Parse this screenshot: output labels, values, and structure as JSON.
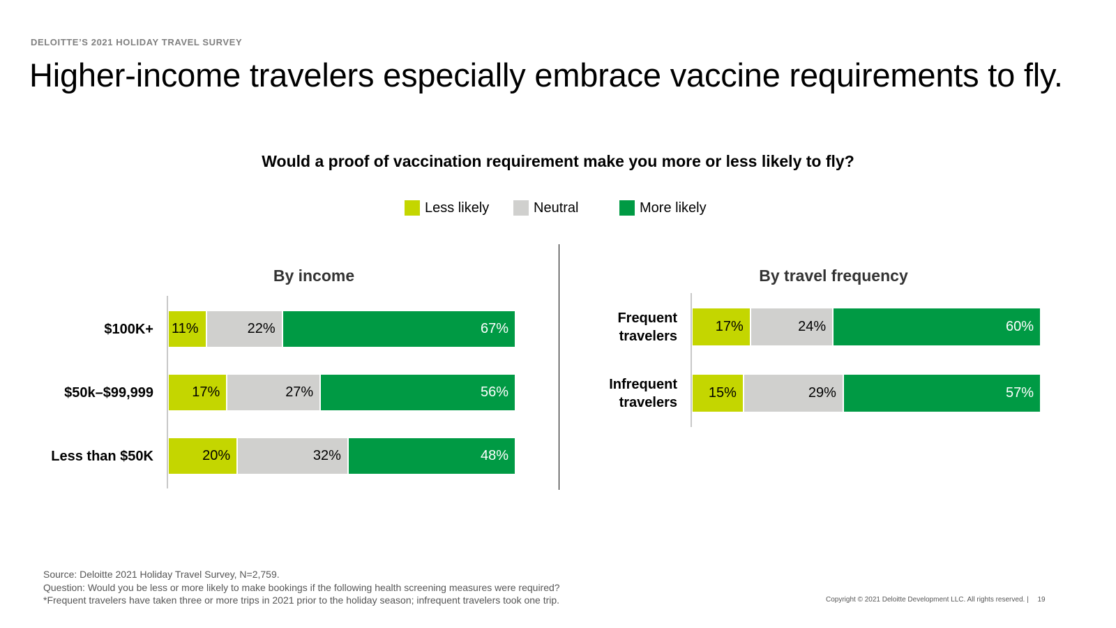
{
  "header": {
    "eyebrow": "DELOITTE’S 2021 HOLIDAY TRAVEL SURVEY",
    "title": "Higher-income travelers especially embrace vaccine requirements to fly."
  },
  "chart_question": "Would a proof of vaccination requirement make you more or less likely to fly?",
  "legend": [
    {
      "label": "Less likely",
      "color": "#c4d600"
    },
    {
      "label": "Neutral",
      "color": "#d0d0ce"
    },
    {
      "label": "More likely",
      "color": "#009a44"
    }
  ],
  "chart_data": [
    {
      "type": "bar",
      "orientation": "horizontal",
      "stacked": true,
      "title": "By income",
      "categories": [
        "$100K+",
        "$50k–$99,999",
        "Less than $50K"
      ],
      "series": [
        {
          "name": "Less likely",
          "values": [
            11,
            17,
            20
          ],
          "labels": [
            "11%",
            "17%",
            "20%"
          ]
        },
        {
          "name": "Neutral",
          "values": [
            22,
            27,
            32
          ],
          "labels": [
            "22%",
            "27%",
            "32%"
          ]
        },
        {
          "name": "More likely",
          "values": [
            67,
            56,
            48
          ],
          "labels": [
            "67%",
            "56%",
            "48%"
          ]
        }
      ],
      "xlim": [
        0,
        100
      ],
      "unit": "%"
    },
    {
      "type": "bar",
      "orientation": "horizontal",
      "stacked": true,
      "title": "By travel frequency",
      "categories": [
        "Frequent travelers",
        "Infrequent travelers"
      ],
      "category_lines": [
        [
          "Frequent",
          "travelers"
        ],
        [
          "Infrequent",
          "travelers"
        ]
      ],
      "series": [
        {
          "name": "Less likely",
          "values": [
            17,
            15
          ],
          "labels": [
            "17%",
            "15%"
          ]
        },
        {
          "name": "Neutral",
          "values": [
            24,
            29
          ],
          "labels": [
            "24%",
            "29%"
          ]
        },
        {
          "name": "More likely",
          "values": [
            60,
            57
          ],
          "labels": [
            "60%",
            "57%"
          ]
        }
      ],
      "xlim": [
        0,
        100
      ],
      "unit": "%"
    }
  ],
  "footer": {
    "source": "Source: Deloitte 2021 Holiday Travel Survey, N=2,759.",
    "question": "Question: Would you be less or more likely to make bookings if the following health screening measures were required?",
    "note": "*Frequent travelers have taken three or more trips in 2021 prior to the holiday season; infrequent travelers took one trip.",
    "copyright": "Copyright © 2021 Deloitte Development LLC. All rights reserved.  |",
    "page_number": "19"
  }
}
